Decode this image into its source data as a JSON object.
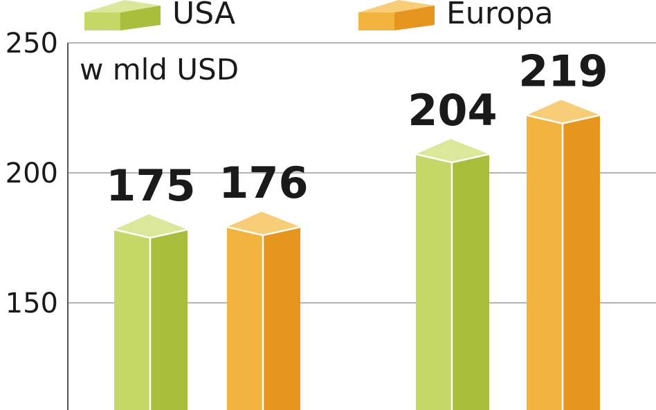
{
  "chart_data": {
    "type": "bar",
    "unit_label": "w mld USD",
    "ylim": [
      100,
      250
    ],
    "yticks": [
      150,
      200,
      250
    ],
    "grid": true,
    "legend_position": "top",
    "categories": [
      "",
      ""
    ],
    "series": [
      {
        "name": "USA",
        "values": [
          175,
          204
        ],
        "color_front": "#c5d867",
        "color_side": "#a9be3c",
        "color_top": "#dbe79b"
      },
      {
        "name": "Europa",
        "values": [
          176,
          219
        ],
        "color_front": "#f3b33f",
        "color_side": "#e6951f",
        "color_top": "#f8cd77"
      }
    ]
  }
}
